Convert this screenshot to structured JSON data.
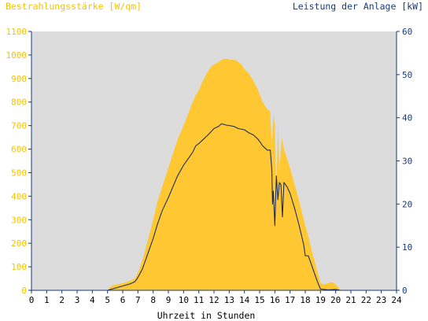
{
  "chart_data": {
    "type": "area",
    "title_left": "Bestrahlungsstärke [W/qm]",
    "title_right": "Leistung der Anlage [kW]",
    "xlabel": "Uhrzeit in Stunden",
    "xlim": [
      0,
      24
    ],
    "x_ticks": [
      "0",
      "1",
      "2",
      "3",
      "4",
      "5",
      "6",
      "7",
      "8",
      "9",
      "10",
      "11",
      "12",
      "13",
      "14",
      "15",
      "16",
      "17",
      "18",
      "19",
      "20",
      "21",
      "22",
      "23",
      "24"
    ],
    "y_left": {
      "lim": [
        0,
        1100
      ],
      "ticks": [
        "0",
        "100",
        "200",
        "300",
        "400",
        "500",
        "600",
        "700",
        "800",
        "900",
        "1000",
        "1100"
      ],
      "color": "#f5c400"
    },
    "y_right": {
      "lim": [
        0,
        60
      ],
      "ticks": [
        "0",
        "10",
        "20",
        "30",
        "40",
        "50",
        "60"
      ],
      "color": "#1a3a7a"
    },
    "grid": false,
    "colors": {
      "plot_bg": "#dcdcdc",
      "area": "#ffc832",
      "line": "#1f2f5a",
      "axis": "#1a3a7a"
    },
    "series": [
      {
        "label": "Bestrahlungsstärke",
        "axis": "left",
        "kind": "area",
        "points": [
          [
            0,
            0
          ],
          [
            5.0,
            0
          ],
          [
            5.1,
            10
          ],
          [
            5.3,
            20
          ],
          [
            5.6,
            25
          ],
          [
            6.0,
            30
          ],
          [
            6.5,
            40
          ],
          [
            6.8,
            50
          ],
          [
            7.0,
            75
          ],
          [
            7.3,
            130
          ],
          [
            7.6,
            200
          ],
          [
            7.8,
            250
          ],
          [
            8.0,
            300
          ],
          [
            8.3,
            380
          ],
          [
            8.6,
            440
          ],
          [
            9.0,
            520
          ],
          [
            9.3,
            580
          ],
          [
            9.6,
            640
          ],
          [
            10.0,
            700
          ],
          [
            10.3,
            750
          ],
          [
            10.6,
            800
          ],
          [
            10.8,
            830
          ],
          [
            11.0,
            850
          ],
          [
            11.2,
            880
          ],
          [
            11.5,
            920
          ],
          [
            11.8,
            950
          ],
          [
            12.0,
            960
          ],
          [
            12.3,
            970
          ],
          [
            12.5,
            980
          ],
          [
            12.8,
            985
          ],
          [
            13.0,
            980
          ],
          [
            13.3,
            980
          ],
          [
            13.5,
            975
          ],
          [
            13.8,
            960
          ],
          [
            14.0,
            940
          ],
          [
            14.3,
            920
          ],
          [
            14.6,
            890
          ],
          [
            14.9,
            850
          ],
          [
            15.2,
            800
          ],
          [
            15.5,
            770
          ],
          [
            15.7,
            760
          ],
          [
            15.8,
            600
          ],
          [
            15.9,
            750
          ],
          [
            16.0,
            700
          ],
          [
            16.1,
            400
          ],
          [
            16.2,
            700
          ],
          [
            16.3,
            500
          ],
          [
            16.45,
            650
          ],
          [
            16.6,
            600
          ],
          [
            16.8,
            560
          ],
          [
            17.0,
            520
          ],
          [
            17.3,
            450
          ],
          [
            17.6,
            380
          ],
          [
            17.9,
            300
          ],
          [
            18.2,
            230
          ],
          [
            18.5,
            150
          ],
          [
            18.8,
            80
          ],
          [
            19.0,
            30
          ],
          [
            19.2,
            25
          ],
          [
            19.5,
            30
          ],
          [
            19.8,
            35
          ],
          [
            20.0,
            25
          ],
          [
            20.2,
            10
          ],
          [
            20.4,
            0
          ],
          [
            24,
            0
          ]
        ]
      },
      {
        "label": "Leistung der Anlage",
        "axis": "right",
        "kind": "line",
        "points": [
          [
            0,
            0
          ],
          [
            5.0,
            0
          ],
          [
            5.5,
            0.5
          ],
          [
            6.0,
            1
          ],
          [
            6.5,
            1.5
          ],
          [
            6.8,
            2
          ],
          [
            7.0,
            3
          ],
          [
            7.3,
            5
          ],
          [
            7.6,
            8
          ],
          [
            8.0,
            12
          ],
          [
            8.3,
            15.5
          ],
          [
            8.6,
            18.5
          ],
          [
            9.0,
            21.5
          ],
          [
            9.3,
            24
          ],
          [
            9.6,
            26.5
          ],
          [
            10.0,
            29
          ],
          [
            10.3,
            30.5
          ],
          [
            10.6,
            32
          ],
          [
            10.8,
            33.5
          ],
          [
            11.0,
            34
          ],
          [
            11.3,
            35
          ],
          [
            11.6,
            36
          ],
          [
            12.0,
            37.5
          ],
          [
            12.3,
            38
          ],
          [
            12.5,
            38.6
          ],
          [
            12.8,
            38.3
          ],
          [
            13.0,
            38.2
          ],
          [
            13.3,
            38
          ],
          [
            13.6,
            37.5
          ],
          [
            14.0,
            37.2
          ],
          [
            14.3,
            36.5
          ],
          [
            14.6,
            36
          ],
          [
            14.9,
            35
          ],
          [
            15.2,
            33.5
          ],
          [
            15.5,
            32.5
          ],
          [
            15.7,
            32.5
          ],
          [
            15.8,
            28
          ],
          [
            15.85,
            20
          ],
          [
            15.9,
            23
          ],
          [
            16.0,
            15
          ],
          [
            16.1,
            26.5
          ],
          [
            16.2,
            21
          ],
          [
            16.3,
            25
          ],
          [
            16.4,
            24.5
          ],
          [
            16.5,
            17
          ],
          [
            16.6,
            25
          ],
          [
            16.8,
            24
          ],
          [
            17.0,
            22.5
          ],
          [
            17.3,
            19
          ],
          [
            17.6,
            15
          ],
          [
            17.9,
            10.5
          ],
          [
            18.0,
            8
          ],
          [
            18.2,
            8
          ],
          [
            18.5,
            5
          ],
          [
            18.8,
            2
          ],
          [
            19.0,
            0.3
          ],
          [
            19.5,
            0.1
          ],
          [
            20.0,
            0.2
          ],
          [
            20.3,
            0
          ],
          [
            24,
            0
          ]
        ]
      }
    ]
  }
}
